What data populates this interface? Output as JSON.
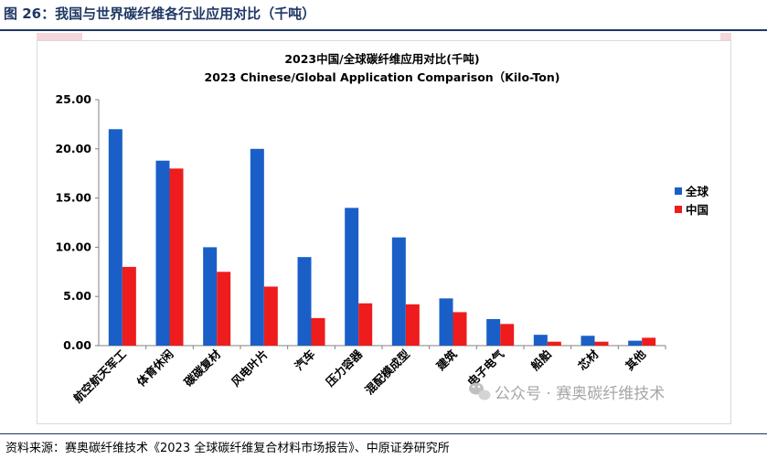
{
  "header": {
    "figure_title": "图 26：我国与世界碳纤维各行业应用对比（千吨）"
  },
  "colors": {
    "global": "#1a5fc7",
    "china": "#ee1c1c",
    "axis": "#808080",
    "header": "#1f3864"
  },
  "chart_data": {
    "type": "bar",
    "title": "2023中国/全球碳纤维应用对比(千吨)",
    "subtitle": "2023 Chinese/Global Application Comparison（Kilo-Ton)",
    "xlabel": "",
    "ylabel": "",
    "ylim": [
      0,
      25
    ],
    "yticks": [
      "0.00",
      "5.00",
      "10.00",
      "15.00",
      "20.00",
      "25.00"
    ],
    "categories": [
      "航空航天军工",
      "体育休闲",
      "碳碳复材",
      "风电叶片",
      "汽车",
      "压力容器",
      "混配模成型",
      "建筑",
      "电子电气",
      "船舶",
      "芯材",
      "其他"
    ],
    "series": [
      {
        "name": "全球",
        "values": [
          22.0,
          18.8,
          10.0,
          20.0,
          9.0,
          14.0,
          11.0,
          4.8,
          2.7,
          1.1,
          1.0,
          0.5
        ]
      },
      {
        "name": "中国",
        "values": [
          8.0,
          18.0,
          7.5,
          6.0,
          2.8,
          4.3,
          4.2,
          3.4,
          2.2,
          0.4,
          0.4,
          0.8
        ]
      }
    ],
    "legend_position": "right"
  },
  "watermark": {
    "text": "公众号 · 赛奥碳纤维技术"
  },
  "footer": {
    "source": "资料来源：赛奥碳纤维技术《2023 全球碳纤维复合材料市场报告》、中原证券研究所"
  }
}
